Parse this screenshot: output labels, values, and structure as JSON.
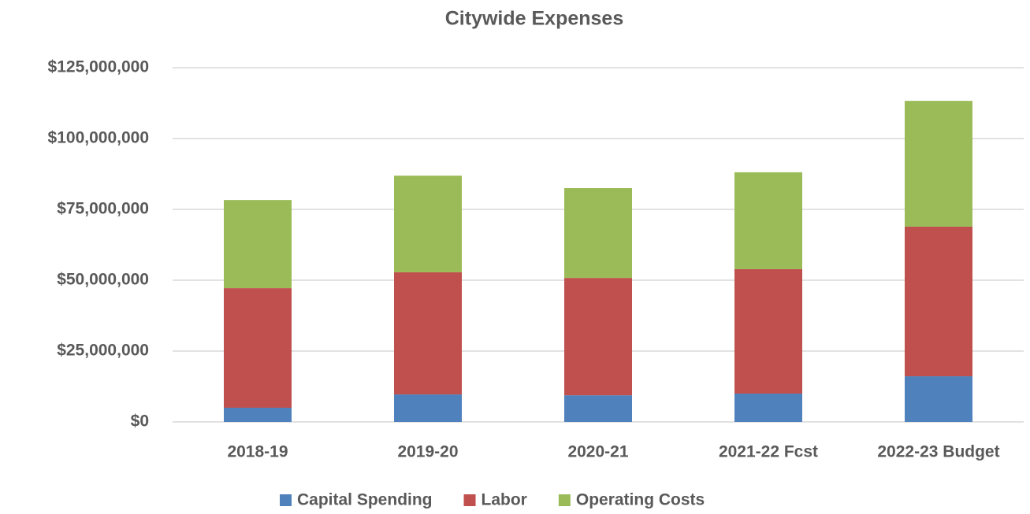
{
  "chart_data": {
    "type": "stacked_bar",
    "title": "Citywide Expenses",
    "categories": [
      "2018-19",
      "2019-20",
      "2020-21",
      "2021-22 Fcst",
      "2022-23 Budget"
    ],
    "series": [
      {
        "name": "Capital Spending",
        "color": "#4f81bd",
        "values": [
          5000000,
          9700000,
          9400000,
          10000000,
          16100000
        ]
      },
      {
        "name": "Labor",
        "color": "#c0504d",
        "values": [
          42200000,
          43100000,
          41400000,
          43900000,
          52800000
        ]
      },
      {
        "name": "Operating Costs",
        "color": "#9bbb59",
        "values": [
          31100000,
          34100000,
          31700000,
          34200000,
          44400000
        ]
      }
    ],
    "ylim": [
      0,
      125000000
    ],
    "yticks": [
      {
        "value": 0,
        "label": "$0"
      },
      {
        "value": 25000000,
        "label": "$25,000,000"
      },
      {
        "value": 50000000,
        "label": "$50,000,000"
      },
      {
        "value": 75000000,
        "label": "$75,000,000"
      },
      {
        "value": 100000000,
        "label": "$100,000,000"
      },
      {
        "value": 125000000,
        "label": "$125,000,000"
      }
    ],
    "grid": true,
    "legend": "bottom"
  }
}
